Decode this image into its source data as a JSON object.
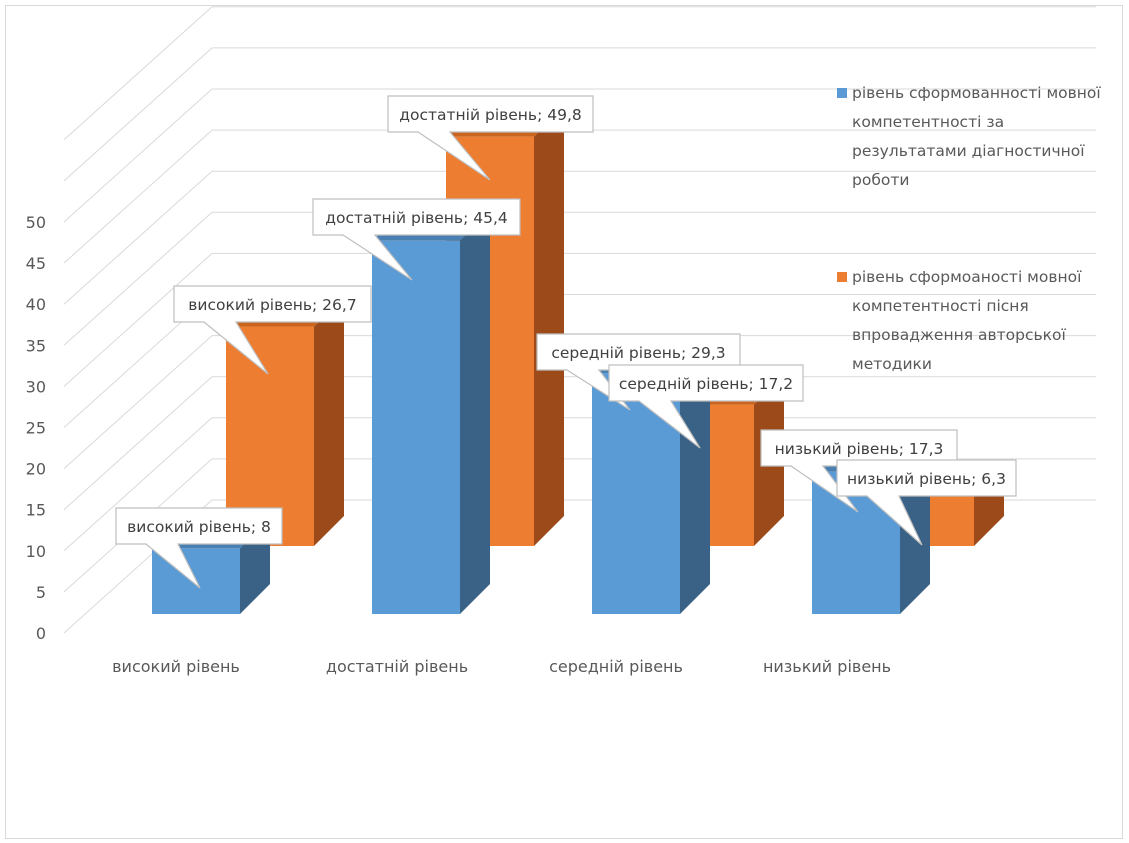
{
  "chart_data": {
    "type": "bar",
    "categories": [
      "високий рівень",
      "достатній рівень",
      "середній рівень",
      "низький рівень"
    ],
    "series": [
      {
        "name": "рівень сформованності мовної компетентності за результатами діагностичної роботи",
        "legend_lines": [
          "рівень сформованності мовної",
          "компетентності за",
          "результатами діагностичної",
          "роботи"
        ],
        "values": [
          8,
          45.4,
          29.3,
          17.3
        ],
        "labels": [
          "високий рівень; 8",
          "достатній рівень; 45,4",
          "середній рівень; 29,3",
          "низький рівень; 17,3"
        ],
        "color": "#5b9bd5",
        "side_color": "#3a6186",
        "top_color": "#4a7fb2"
      },
      {
        "name": "рівень сформоаності мовної компетентності пісня впровадження авторської методики",
        "legend_lines": [
          "рівень сформоаності мовної",
          "компетентності пісня",
          "впровадження авторської",
          "методики"
        ],
        "values": [
          26.7,
          49.8,
          17.2,
          6.3
        ],
        "labels": [
          "високий рівень; 26,7",
          "достатній рівень; 49,8",
          "середній рівень; 17,2",
          "низький рівень; 6,3"
        ],
        "color": "#ed7d31",
        "side_color": "#9c4a1a",
        "top_color": "#c9651f"
      }
    ],
    "y_ticks": [
      "0",
      "5",
      "10",
      "15",
      "20",
      "25",
      "30",
      "35",
      "40",
      "45",
      "50"
    ],
    "ylim": [
      0,
      50
    ],
    "grid": true,
    "legend_position": "right",
    "view": "3d-clustered-columns"
  }
}
